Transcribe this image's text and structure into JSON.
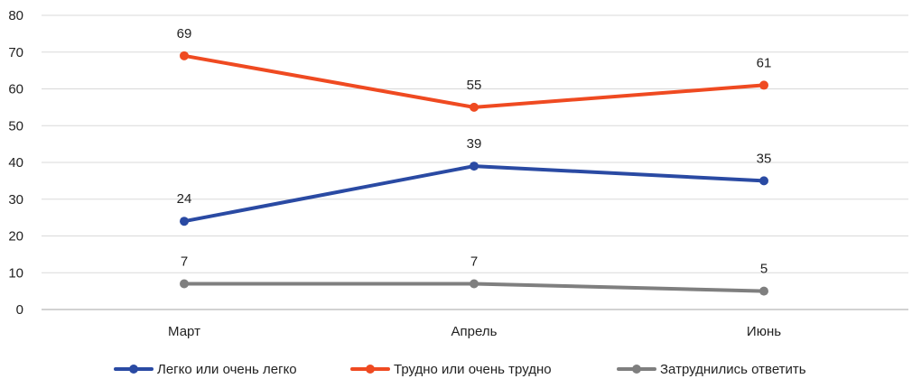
{
  "chart_data": {
    "type": "line",
    "categories": [
      "Март",
      "Апрель",
      "Июнь"
    ],
    "series": [
      {
        "name": "Легко или очень легко",
        "values": [
          24,
          39,
          35
        ],
        "labels": [
          "24",
          "39",
          "35"
        ],
        "color": "#2a4aa3"
      },
      {
        "name": "Трудно или  очень трудно",
        "values": [
          69,
          55,
          61
        ],
        "labels": [
          "69",
          "55",
          "61"
        ],
        "color": "#ef4a21"
      },
      {
        "name": "Затруднились ответить",
        "values": [
          7,
          7,
          5
        ],
        "labels": [
          "7",
          "7",
          "5"
        ],
        "color": "#7f7f7f"
      }
    ],
    "ylim": [
      0,
      80
    ],
    "yticks": [
      "0",
      "10",
      "20",
      "30",
      "40",
      "50",
      "60",
      "70",
      "80"
    ],
    "grid": true,
    "legend": "bottom",
    "title": "",
    "xlabel": "",
    "ylabel": ""
  }
}
